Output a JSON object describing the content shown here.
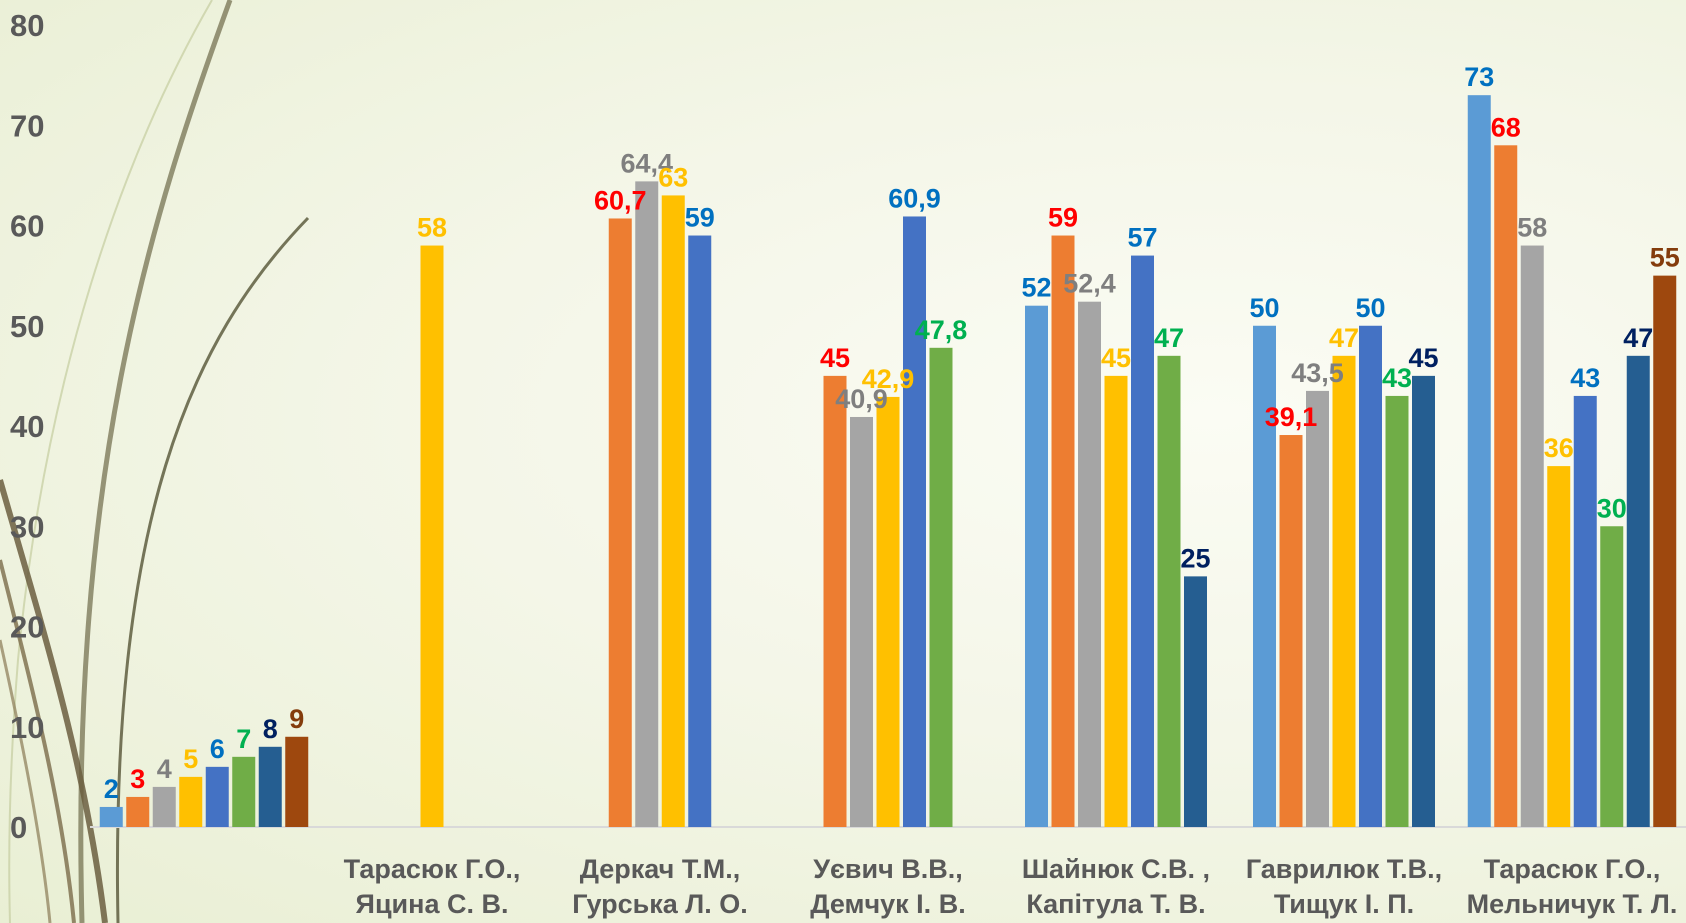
{
  "chart_data": {
    "type": "bar",
    "title": "",
    "xlabel": "",
    "ylabel": "",
    "ylim": [
      0,
      80
    ],
    "yticks": [
      "0",
      "10",
      "20",
      "30",
      "40",
      "50",
      "60",
      "70",
      "80"
    ],
    "grid": false,
    "legend": "none",
    "groups": [
      {
        "label_lines": [
          "",
          ""
        ],
        "bars": [
          {
            "value": 2,
            "label": "2",
            "color": "#5b9bd5",
            "label_color": "#0070c0"
          },
          {
            "value": 3,
            "label": "3",
            "color": "#ed7d31",
            "label_color": "#ff0000"
          },
          {
            "value": 4,
            "label": "4",
            "color": "#a5a5a5",
            "label_color": "#7f7f7f"
          },
          {
            "value": 5,
            "label": "5",
            "color": "#ffc000",
            "label_color": "#ffc000"
          },
          {
            "value": 6,
            "label": "6",
            "color": "#4472c4",
            "label_color": "#0070c0"
          },
          {
            "value": 7,
            "label": "7",
            "color": "#70ad47",
            "label_color": "#00b050"
          },
          {
            "value": 8,
            "label": "8",
            "color": "#255e91",
            "label_color": "#002060"
          },
          {
            "value": 9,
            "label": "9",
            "color": "#9e480e",
            "label_color": "#843c0c"
          }
        ]
      },
      {
        "label_lines": [
          "Тарасюк Г.О.,",
          "Яцина С. В."
        ],
        "bars": [
          {
            "value": 58,
            "label": "58",
            "color": "#ffc000",
            "label_color": "#ffc000"
          }
        ]
      },
      {
        "label_lines": [
          "Деркач Т.М.,",
          "Гурська Л. О."
        ],
        "bars": [
          {
            "value": 60.7,
            "label": "60,7",
            "color": "#ed7d31",
            "label_color": "#ff0000"
          },
          {
            "value": 64.4,
            "label": "64,4",
            "color": "#a5a5a5",
            "label_color": "#7f7f7f"
          },
          {
            "value": 63,
            "label": "63",
            "color": "#ffc000",
            "label_color": "#ffc000"
          },
          {
            "value": 59,
            "label": "59",
            "color": "#4472c4",
            "label_color": "#0070c0"
          }
        ]
      },
      {
        "label_lines": [
          "Уєвич В.В.,",
          "Демчук І. В."
        ],
        "bars": [
          {
            "value": 45,
            "label": "45",
            "color": "#ed7d31",
            "label_color": "#ff0000"
          },
          {
            "value": 40.9,
            "label": "40,9",
            "color": "#a5a5a5",
            "label_color": "#7f7f7f"
          },
          {
            "value": 42.9,
            "label": "42,9",
            "color": "#ffc000",
            "label_color": "#ffc000"
          },
          {
            "value": 60.9,
            "label": "60,9",
            "color": "#4472c4",
            "label_color": "#0070c0"
          },
          {
            "value": 47.8,
            "label": "47,8",
            "color": "#70ad47",
            "label_color": "#00b050"
          }
        ]
      },
      {
        "label_lines": [
          "Шайнюк С.В. ,",
          "Капітула Т. В."
        ],
        "bars": [
          {
            "value": 52,
            "label": "52",
            "color": "#5b9bd5",
            "label_color": "#0070c0"
          },
          {
            "value": 59,
            "label": "59",
            "color": "#ed7d31",
            "label_color": "#ff0000"
          },
          {
            "value": 52.4,
            "label": "52,4",
            "color": "#a5a5a5",
            "label_color": "#7f7f7f"
          },
          {
            "value": 45,
            "label": "45",
            "color": "#ffc000",
            "label_color": "#ffc000"
          },
          {
            "value": 57,
            "label": "57",
            "color": "#4472c4",
            "label_color": "#0070c0"
          },
          {
            "value": 47,
            "label": "47",
            "color": "#70ad47",
            "label_color": "#00b050"
          },
          {
            "value": 25,
            "label": "25",
            "color": "#255e91",
            "label_color": "#002060"
          }
        ]
      },
      {
        "label_lines": [
          "Гаврилюк Т.В.,",
          "Тищук І. П."
        ],
        "bars": [
          {
            "value": 50,
            "label": "50",
            "color": "#5b9bd5",
            "label_color": "#0070c0"
          },
          {
            "value": 39.1,
            "label": "39,1",
            "color": "#ed7d31",
            "label_color": "#ff0000"
          },
          {
            "value": 43.5,
            "label": "43,5",
            "color": "#a5a5a5",
            "label_color": "#7f7f7f"
          },
          {
            "value": 47,
            "label": "47",
            "color": "#ffc000",
            "label_color": "#ffc000"
          },
          {
            "value": 50,
            "label": "50",
            "color": "#4472c4",
            "label_color": "#0070c0"
          },
          {
            "value": 43,
            "label": "43",
            "color": "#70ad47",
            "label_color": "#00b050"
          },
          {
            "value": 45,
            "label": "45",
            "color": "#255e91",
            "label_color": "#002060"
          }
        ]
      },
      {
        "label_lines": [
          "Тарасюк Г.О.,",
          "Мельничук Т. Л."
        ],
        "bars": [
          {
            "value": 73,
            "label": "73",
            "color": "#5b9bd5",
            "label_color": "#0070c0"
          },
          {
            "value": 68,
            "label": "68",
            "color": "#ed7d31",
            "label_color": "#ff0000"
          },
          {
            "value": 58,
            "label": "58",
            "color": "#a5a5a5",
            "label_color": "#7f7f7f"
          },
          {
            "value": 36,
            "label": "36",
            "color": "#ffc000",
            "label_color": "#ffc000"
          },
          {
            "value": 43,
            "label": "43",
            "color": "#4472c4",
            "label_color": "#0070c0"
          },
          {
            "value": 30,
            "label": "30",
            "color": "#70ad47",
            "label_color": "#00b050"
          },
          {
            "value": 47,
            "label": "47",
            "color": "#255e91",
            "label_color": "#002060"
          },
          {
            "value": 55,
            "label": "55",
            "color": "#9e480e",
            "label_color": "#843c0c"
          }
        ]
      }
    ]
  }
}
